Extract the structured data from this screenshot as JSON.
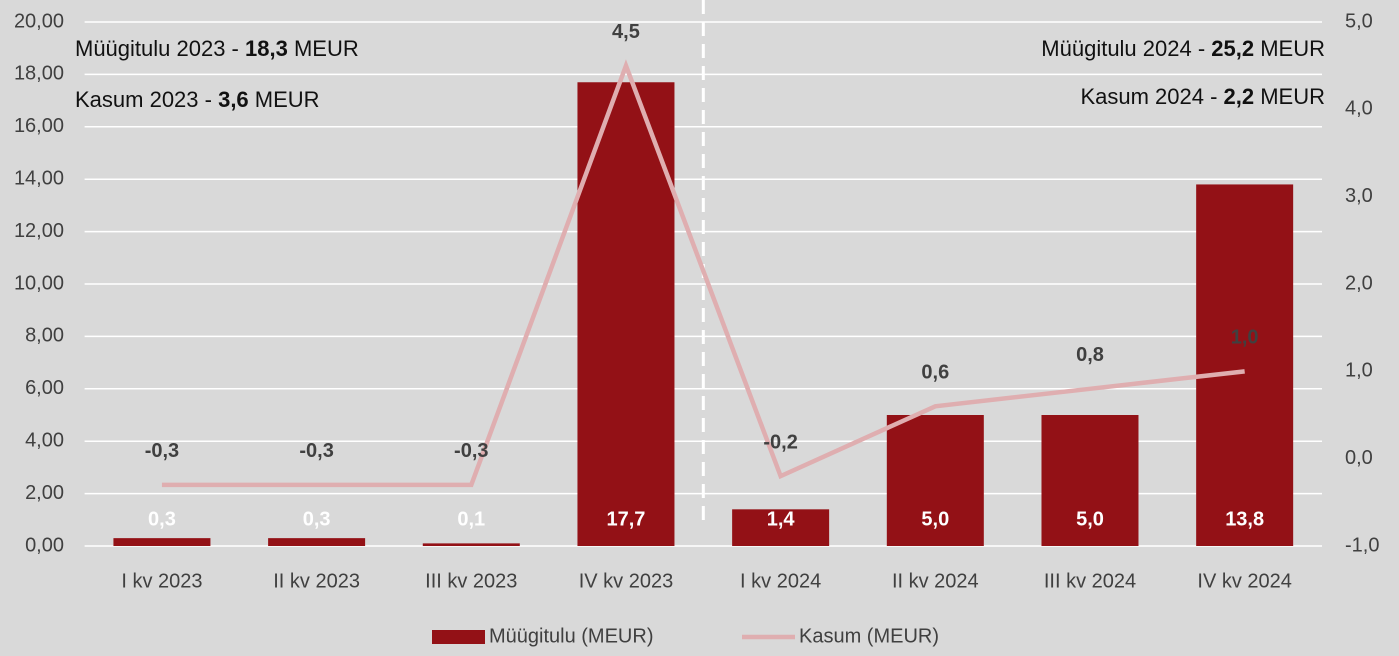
{
  "chart_data": {
    "type": "bar_line",
    "categories": [
      "I kv 2023",
      "II kv 2023",
      "III kv 2023",
      "IV kv 2023",
      "I kv 2024",
      "II kv 2024",
      "III kv 2024",
      "IV kv 2024"
    ],
    "series": [
      {
        "name": "Müügitulu (MEUR)",
        "type": "bar",
        "color": "#931116",
        "values": [
          0.3,
          0.3,
          0.1,
          17.7,
          1.4,
          5.0,
          5.0,
          13.8
        ],
        "value_labels": [
          "0,3",
          "0,3",
          "0,1",
          "17,7",
          "1,4",
          "5,0",
          "5,0",
          "13,8"
        ]
      },
      {
        "name": "Kasum (MEUR)",
        "type": "line",
        "axis": "y2",
        "color": "#dfaeb0",
        "values": [
          -0.3,
          -0.3,
          -0.3,
          4.5,
          -0.2,
          0.6,
          0.8,
          1.0
        ],
        "value_labels": [
          "-0,3",
          "-0,3",
          "-0,3",
          "4,5",
          "-0,2",
          "0,6",
          "0,8",
          "1,0"
        ]
      }
    ],
    "ylim": [
      0,
      20
    ],
    "yticks": [
      {
        "value": 0,
        "label": "0,00"
      },
      {
        "value": 2,
        "label": "2,00"
      },
      {
        "value": 4,
        "label": "4,00"
      },
      {
        "value": 6,
        "label": "6,00"
      },
      {
        "value": 8,
        "label": "8,00"
      },
      {
        "value": 10,
        "label": "10,00"
      },
      {
        "value": 12,
        "label": "12,00"
      },
      {
        "value": 14,
        "label": "14,00"
      },
      {
        "value": 16,
        "label": "16,00"
      },
      {
        "value": 18,
        "label": "18,00"
      },
      {
        "value": 20,
        "label": "20,00"
      }
    ],
    "y2lim": [
      -1,
      5
    ],
    "y2ticks": [
      {
        "value": -1,
        "label": "-1,0"
      },
      {
        "value": 0,
        "label": "0,0"
      },
      {
        "value": 1,
        "label": "1,0"
      },
      {
        "value": 2,
        "label": "2,0"
      },
      {
        "value": 3,
        "label": "3,0"
      },
      {
        "value": 4,
        "label": "4,0"
      },
      {
        "value": 5,
        "label": "5,0"
      }
    ],
    "grid": true,
    "legend": "bottom",
    "annotations": [
      {
        "prefix": "Müügitulu 2023 - ",
        "bold": "18,3",
        "suffix": " MEUR"
      },
      {
        "prefix": "Kasum 2023 - ",
        "bold": "3,6",
        "suffix": " MEUR"
      },
      {
        "prefix": "Müügitulu 2024 - ",
        "bold": "25,2",
        "suffix": " MEUR"
      },
      {
        "prefix": "Kasum 2024 - ",
        "bold": "2,2",
        "suffix": " MEUR"
      }
    ]
  }
}
